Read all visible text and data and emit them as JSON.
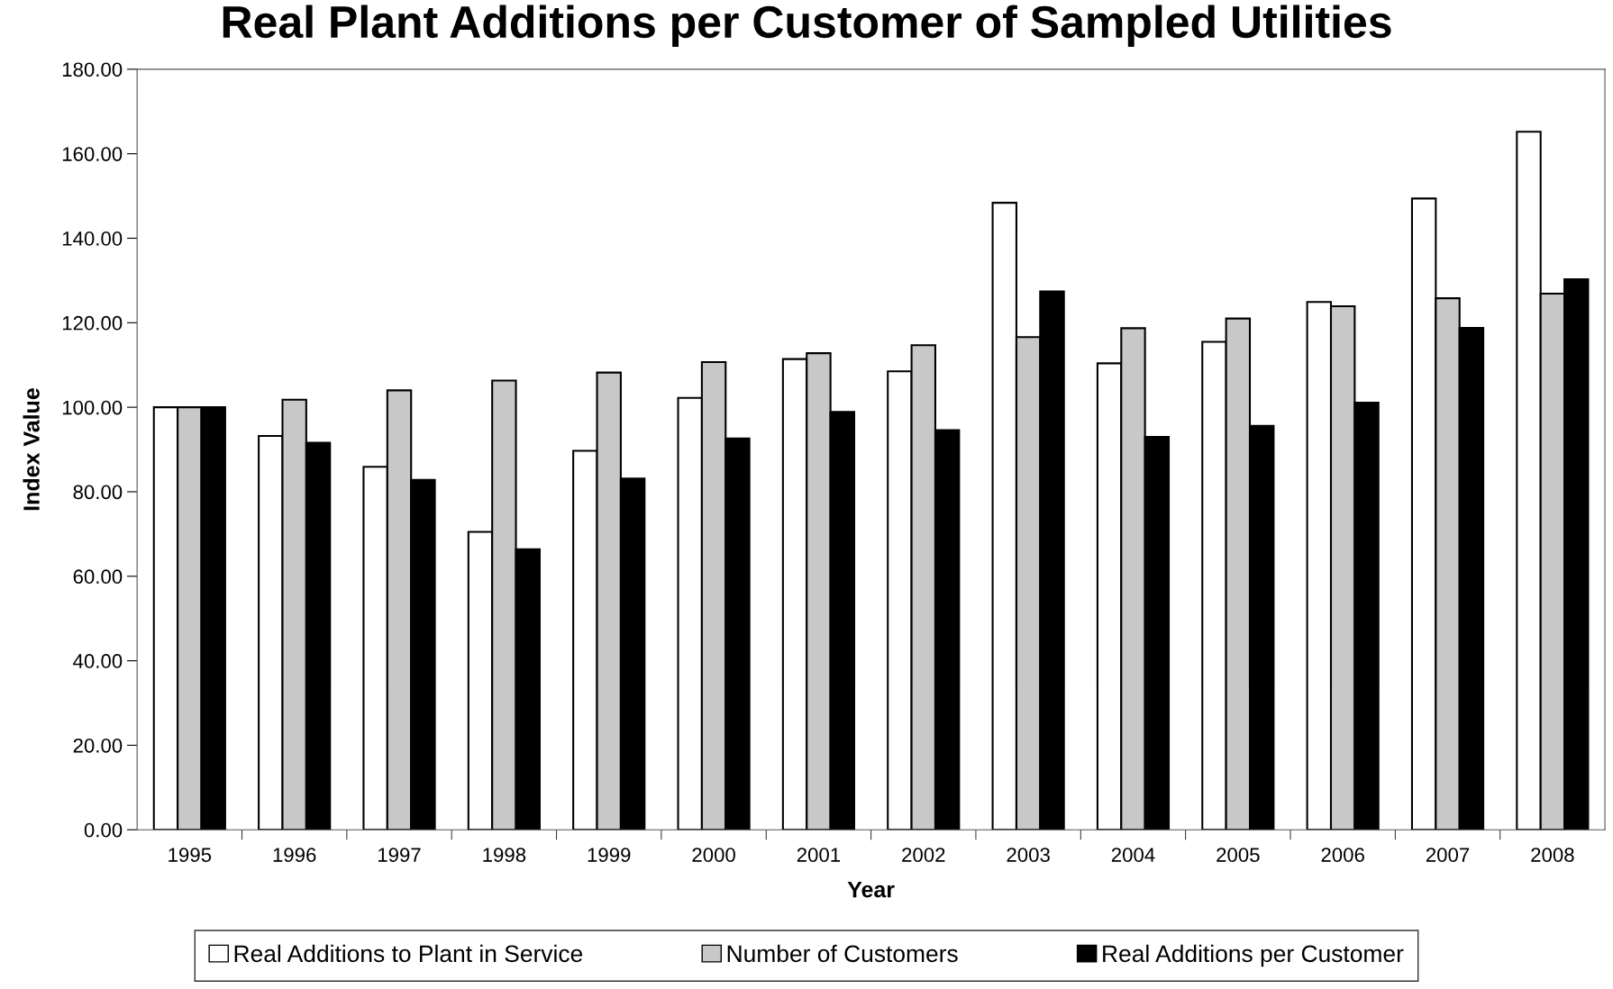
{
  "chart_data": {
    "type": "bar",
    "title": "Real Plant Additions per Customer of Sampled Utilities",
    "xlabel": "Year",
    "ylabel": "Index Value",
    "categories": [
      "1995",
      "1996",
      "1997",
      "1998",
      "1999",
      "2000",
      "2001",
      "2002",
      "2003",
      "2004",
      "2005",
      "2006",
      "2007",
      "2008"
    ],
    "series": [
      {
        "name": "Real Additions to Plant in Service",
        "color": "#ffffff",
        "values": [
          100,
          93.2,
          85.9,
          70.5,
          89.7,
          102.2,
          111.4,
          108.5,
          148.4,
          110.4,
          115.5,
          124.9,
          149.4,
          165.2
        ]
      },
      {
        "name": "Number of Customers",
        "color": "#c8c8c8",
        "values": [
          100,
          101.8,
          104.0,
          106.3,
          108.2,
          110.7,
          112.8,
          114.7,
          116.6,
          118.7,
          121.0,
          123.9,
          125.8,
          126.9
        ]
      },
      {
        "name": "Real Additions per Customer",
        "color": "#000000",
        "values": [
          100,
          91.6,
          82.8,
          66.4,
          83.1,
          92.6,
          98.9,
          94.6,
          127.4,
          93.0,
          95.6,
          101.1,
          118.8,
          130.3
        ]
      }
    ],
    "ylim": [
      0,
      180
    ],
    "yticks": [
      {
        "value": 0,
        "label": "0.00"
      },
      {
        "value": 20,
        "label": "20.00"
      },
      {
        "value": 40,
        "label": "40.00"
      },
      {
        "value": 60,
        "label": "60.00"
      },
      {
        "value": 80,
        "label": "80.00"
      },
      {
        "value": 100,
        "label": "100.00"
      },
      {
        "value": 120,
        "label": "120.00"
      },
      {
        "value": 140,
        "label": "140.00"
      },
      {
        "value": 160,
        "label": "160.00"
      },
      {
        "value": 180,
        "label": "180.00"
      }
    ],
    "grid": false,
    "legend": "bottom"
  }
}
